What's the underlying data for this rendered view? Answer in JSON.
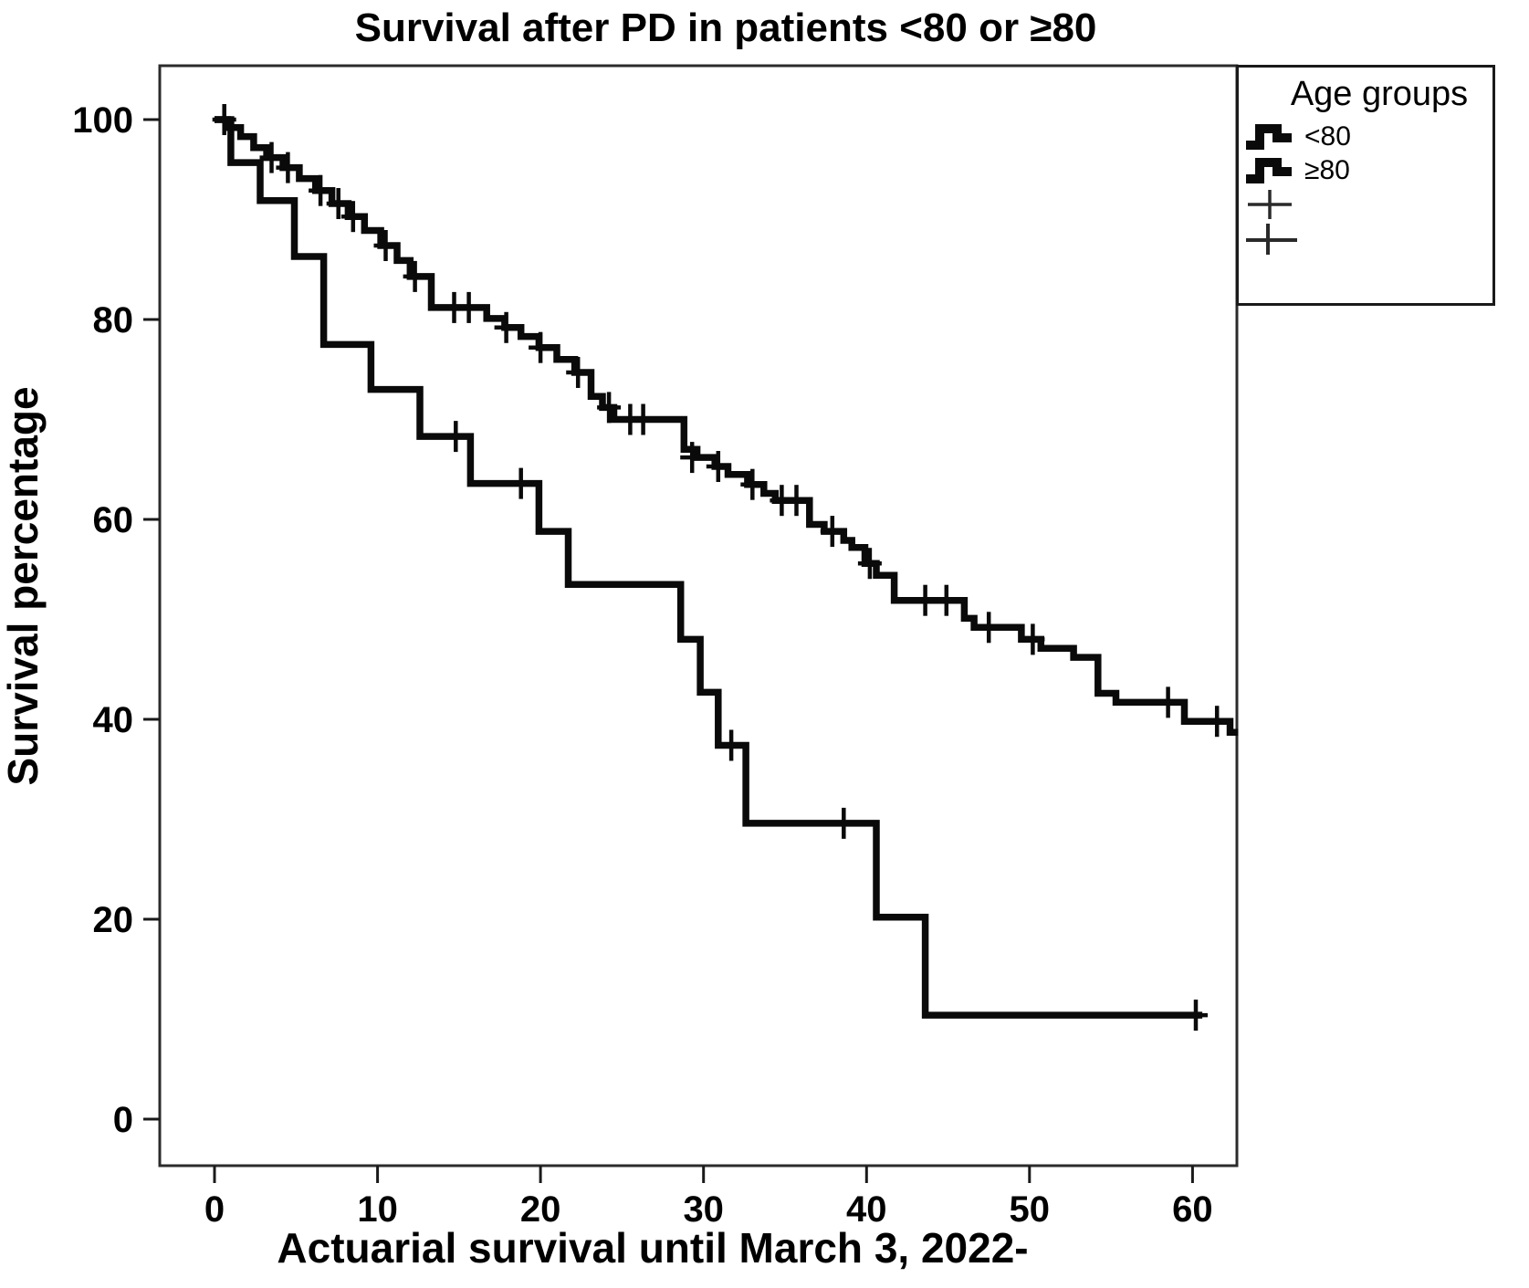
{
  "title": "Survival after PD in patients <80 or ≥80",
  "x_axis": {
    "label": "Actuarial survival until March 3, 2022-",
    "ticks": [
      0,
      10,
      20,
      30,
      40,
      50,
      60
    ]
  },
  "y_axis": {
    "label": "Survival percentage",
    "ticks": [
      100,
      80,
      60,
      40,
      20,
      0
    ]
  },
  "legend": {
    "title": "Age groups",
    "entries": [
      {
        "label": "<80",
        "marker": "step-line"
      },
      {
        "label": "≥80",
        "marker": "step-line"
      },
      {
        "label": "",
        "marker": "censor-plus"
      },
      {
        "label": "",
        "marker": "censor-plus"
      }
    ]
  },
  "chart_data": {
    "type": "line",
    "subtype": "kaplan-meier-step",
    "title": "Survival after PD in patients <80 or ≥80",
    "xlabel": "Actuarial survival until March 3, 2022-",
    "ylabel": "Survival percentage",
    "xlim": [
      -3.4,
      62.8
    ],
    "ylim": [
      -4.8,
      105.4
    ],
    "x_ticks": [
      0,
      10,
      20,
      30,
      40,
      50,
      60
    ],
    "y_ticks": [
      100,
      80,
      60,
      40,
      20,
      0
    ],
    "grid": false,
    "legend_position": "outside-upper-right",
    "line_color": "#0a0a0a",
    "background": "#ffffff",
    "series": [
      {
        "name": "<80",
        "end_time": 62.8,
        "steps": [
          [
            0,
            100
          ],
          [
            0.8,
            99.2
          ],
          [
            1.6,
            98.3
          ],
          [
            2.4,
            97.2
          ],
          [
            3.2,
            96.2
          ],
          [
            4.2,
            95.2
          ],
          [
            5.2,
            94.1
          ],
          [
            6.2,
            92.9
          ],
          [
            7.2,
            91.6
          ],
          [
            8.2,
            90.3
          ],
          [
            9.2,
            88.9
          ],
          [
            10.2,
            87.4
          ],
          [
            11.2,
            85.9
          ],
          [
            12,
            84.3
          ],
          [
            13.3,
            81.2
          ],
          [
            16.7,
            80.1
          ],
          [
            17.8,
            79.2
          ],
          [
            18.8,
            78.3
          ],
          [
            19.9,
            77.2
          ],
          [
            21,
            76
          ],
          [
            22.1,
            74.7
          ],
          [
            23.1,
            72.3
          ],
          [
            23.8,
            71.2
          ],
          [
            24.5,
            70
          ],
          [
            28.8,
            67
          ],
          [
            29.6,
            66.2
          ],
          [
            30.7,
            65.3
          ],
          [
            31.5,
            64.5
          ],
          [
            32.7,
            63.5
          ],
          [
            33.7,
            62.6
          ],
          [
            34.4,
            61.9
          ],
          [
            36.5,
            59.5
          ],
          [
            37.4,
            58.8
          ],
          [
            38.6,
            57.9
          ],
          [
            39.1,
            57.2
          ],
          [
            39.9,
            55.6
          ],
          [
            40.6,
            54.4
          ],
          [
            41.7,
            51.9
          ],
          [
            46,
            50.1
          ],
          [
            46.6,
            49.2
          ],
          [
            49.5,
            48
          ],
          [
            50.7,
            47.1
          ],
          [
            52.7,
            46.2
          ],
          [
            54.2,
            42.6
          ],
          [
            55.3,
            41.7
          ],
          [
            59.5,
            39.8
          ],
          [
            62.3,
            38.7
          ]
        ],
        "censor_marks": [
          [
            0.6,
            100
          ],
          [
            3.5,
            96.2
          ],
          [
            4.5,
            95.2
          ],
          [
            6.5,
            92.9
          ],
          [
            7.6,
            91.6
          ],
          [
            8.5,
            90.3
          ],
          [
            10.5,
            87.4
          ],
          [
            12.3,
            84.3
          ],
          [
            14.7,
            81.2
          ],
          [
            15.6,
            81.2
          ],
          [
            17.9,
            79.2
          ],
          [
            20,
            77.2
          ],
          [
            22.3,
            74.7
          ],
          [
            24.2,
            71.2
          ],
          [
            25.5,
            70
          ],
          [
            26.3,
            70
          ],
          [
            29.3,
            66.2
          ],
          [
            30.9,
            65.3
          ],
          [
            33,
            63.5
          ],
          [
            34.8,
            61.9
          ],
          [
            35.7,
            61.9
          ],
          [
            37.9,
            58.8
          ],
          [
            40.2,
            55.6
          ],
          [
            43.6,
            51.9
          ],
          [
            44.9,
            51.9
          ],
          [
            47.5,
            49.2
          ],
          [
            50.2,
            48
          ],
          [
            58.5,
            41.7
          ],
          [
            61.5,
            39.8
          ]
        ]
      },
      {
        "name": "≥80",
        "end_time": 60.6,
        "steps": [
          [
            0,
            100
          ],
          [
            1,
            95.7
          ],
          [
            2.8,
            91.9
          ],
          [
            4.9,
            86.3
          ],
          [
            6.7,
            77.5
          ],
          [
            9.6,
            73
          ],
          [
            12.6,
            68.3
          ],
          [
            15.7,
            63.6
          ],
          [
            19.9,
            58.8
          ],
          [
            21.7,
            53.5
          ],
          [
            28.6,
            48
          ],
          [
            29.8,
            42.7
          ],
          [
            30.9,
            37.4
          ],
          [
            32.6,
            29.6
          ],
          [
            40.6,
            20.2
          ],
          [
            43.6,
            10.4
          ]
        ],
        "censor_marks": [
          [
            14.8,
            68.3
          ],
          [
            18.8,
            63.6
          ],
          [
            31.7,
            37.4
          ],
          [
            38.6,
            29.6
          ],
          [
            60.2,
            10.4
          ]
        ]
      }
    ]
  }
}
